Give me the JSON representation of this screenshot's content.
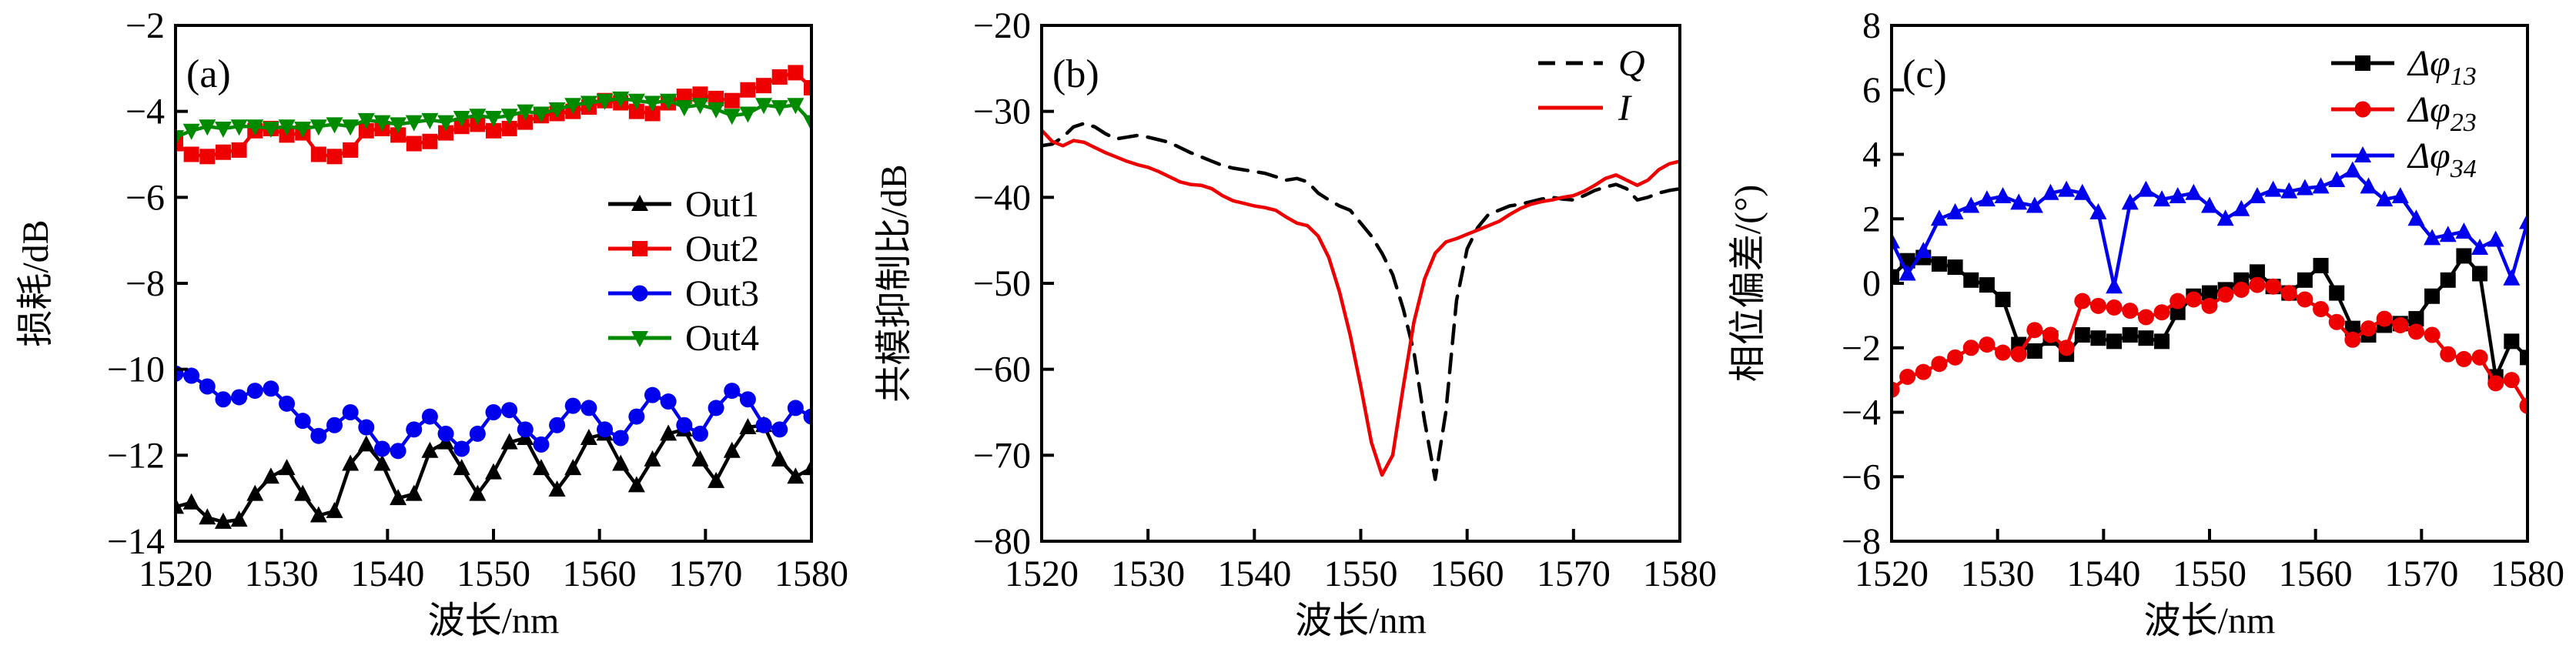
{
  "figure": {
    "background": "#ffffff",
    "colors": {
      "black": "#000000",
      "red": "#ee0000",
      "blue": "#0000ee",
      "green": "#008a00"
    }
  },
  "chart_data": [
    {
      "id": "a",
      "type": "line",
      "panel_label": "(a)",
      "xlabel": "波长/nm",
      "ylabel": "损耗/dB",
      "xlim": [
        1520,
        1580
      ],
      "ylim": [
        -14,
        -2
      ],
      "xticks": [
        1520,
        1530,
        1540,
        1550,
        1560,
        1570,
        1580
      ],
      "yticks": [
        -2,
        -4,
        -6,
        -8,
        -10,
        -12,
        -14
      ],
      "grid": false,
      "legend_position": "inside-middle-right",
      "x": [
        1520,
        1521.5,
        1523,
        1524.5,
        1526,
        1527.5,
        1529,
        1530.5,
        1532,
        1533.5,
        1535,
        1536.5,
        1538,
        1539.5,
        1541,
        1542.5,
        1544,
        1545.5,
        1547,
        1548.5,
        1550,
        1551.5,
        1553,
        1554.5,
        1556,
        1557.5,
        1559,
        1560.5,
        1562,
        1563.5,
        1565,
        1566.5,
        1568,
        1569.5,
        1571,
        1572.5,
        1574,
        1575.5,
        1577,
        1578.5,
        1580
      ],
      "series": [
        {
          "name": "Out1",
          "color": "#000000",
          "marker": "triangle-up",
          "line_style": "solid",
          "legend": {
            "text": "Out1"
          },
          "y": [
            -13.2,
            -13.1,
            -13.45,
            -13.55,
            -13.5,
            -12.9,
            -12.5,
            -12.3,
            -12.9,
            -13.4,
            -13.3,
            -12.2,
            -11.75,
            -12.2,
            -13.0,
            -12.9,
            -11.9,
            -11.7,
            -12.3,
            -12.9,
            -12.4,
            -11.7,
            -11.6,
            -12.3,
            -12.8,
            -12.3,
            -11.6,
            -11.5,
            -12.2,
            -12.7,
            -12.1,
            -11.5,
            -11.4,
            -12.1,
            -12.6,
            -11.9,
            -11.35,
            -11.3,
            -12.1,
            -12.5,
            -12.3
          ]
        },
        {
          "name": "Out2",
          "color": "#ee0000",
          "marker": "square",
          "line_style": "solid",
          "legend": {
            "text": "Out2"
          },
          "y": [
            -4.75,
            -5.0,
            -5.05,
            -4.95,
            -4.9,
            -4.45,
            -4.4,
            -4.55,
            -4.5,
            -5.0,
            -5.05,
            -4.9,
            -4.45,
            -4.4,
            -4.55,
            -4.75,
            -4.7,
            -4.5,
            -4.35,
            -4.3,
            -4.45,
            -4.4,
            -4.25,
            -4.1,
            -4.05,
            -4.0,
            -3.9,
            -3.75,
            -3.8,
            -4.0,
            -4.05,
            -3.8,
            -3.65,
            -3.6,
            -3.7,
            -3.75,
            -3.5,
            -3.4,
            -3.2,
            -3.1,
            -3.45
          ]
        },
        {
          "name": "Out3",
          "color": "#0000ee",
          "marker": "circle",
          "line_style": "solid",
          "legend": {
            "text": "Out3"
          },
          "y": [
            -10.1,
            -10.15,
            -10.4,
            -10.7,
            -10.65,
            -10.5,
            -10.45,
            -10.8,
            -11.2,
            -11.55,
            -11.3,
            -11.0,
            -11.35,
            -11.85,
            -11.9,
            -11.4,
            -11.1,
            -11.5,
            -11.85,
            -11.5,
            -11.0,
            -10.95,
            -11.4,
            -11.75,
            -11.3,
            -10.85,
            -10.9,
            -11.4,
            -11.6,
            -11.1,
            -10.6,
            -10.75,
            -11.3,
            -11.5,
            -10.9,
            -10.5,
            -10.7,
            -11.3,
            -11.4,
            -10.9,
            -11.1
          ]
        },
        {
          "name": "Out4",
          "color": "#008a00",
          "marker": "triangle-down",
          "line_style": "solid",
          "legend": {
            "text": "Out4"
          },
          "y": [
            -4.6,
            -4.45,
            -4.35,
            -4.4,
            -4.35,
            -4.35,
            -4.4,
            -4.35,
            -4.4,
            -4.35,
            -4.3,
            -4.35,
            -4.2,
            -4.25,
            -4.3,
            -4.25,
            -4.2,
            -4.25,
            -4.15,
            -4.1,
            -4.15,
            -4.1,
            -4.0,
            -4.05,
            -3.95,
            -3.85,
            -3.8,
            -3.75,
            -3.7,
            -3.75,
            -3.8,
            -3.75,
            -3.9,
            -3.85,
            -3.95,
            -4.1,
            -4.05,
            -3.85,
            -3.9,
            -3.85,
            -4.25
          ]
        }
      ]
    },
    {
      "id": "b",
      "type": "line",
      "panel_label": "(b)",
      "xlabel": "波长/nm",
      "ylabel": "共模抑制比/dB",
      "xlim": [
        1520,
        1580
      ],
      "ylim": [
        -80,
        -20
      ],
      "xticks": [
        1520,
        1530,
        1540,
        1550,
        1560,
        1570,
        1580
      ],
      "yticks": [
        -20,
        -30,
        -40,
        -50,
        -60,
        -70,
        -80
      ],
      "grid": false,
      "legend_position": "inside-top-right",
      "x": [
        1520,
        1521,
        1522,
        1523,
        1524,
        1525,
        1526,
        1527,
        1528,
        1529,
        1530,
        1531,
        1532,
        1533,
        1534,
        1535,
        1536,
        1537,
        1538,
        1539,
        1540,
        1541,
        1542,
        1543,
        1544,
        1545,
        1546,
        1547,
        1548,
        1549,
        1550,
        1551,
        1552,
        1553,
        1554,
        1555,
        1556,
        1557,
        1558,
        1559,
        1560,
        1561,
        1562,
        1563,
        1564,
        1565,
        1566,
        1567,
        1568,
        1569,
        1570,
        1571,
        1572,
        1573,
        1574,
        1575,
        1576,
        1577,
        1578,
        1579,
        1580
      ],
      "series": [
        {
          "name": "Q",
          "color": "#000000",
          "marker": null,
          "line_style": "dashed",
          "legend": {
            "text": "Q",
            "italic": true
          },
          "y": [
            -34.0,
            -33.8,
            -33.0,
            -31.8,
            -31.4,
            -31.8,
            -32.6,
            -33.2,
            -33.0,
            -32.8,
            -33.0,
            -33.3,
            -33.6,
            -34.2,
            -34.8,
            -35.3,
            -35.8,
            -36.3,
            -36.6,
            -36.8,
            -37.0,
            -37.2,
            -37.6,
            -38.0,
            -37.8,
            -38.2,
            -39.5,
            -40.3,
            -41.0,
            -41.5,
            -43.0,
            -44.5,
            -46.5,
            -49.0,
            -53.0,
            -58.0,
            -66.0,
            -72.8,
            -65.0,
            -52.0,
            -46.0,
            -43.5,
            -42.0,
            -41.5,
            -41.0,
            -40.8,
            -40.5,
            -40.2,
            -40.0,
            -40.2,
            -40.3,
            -39.8,
            -39.2,
            -38.8,
            -38.5,
            -39.0,
            -40.3,
            -40.0,
            -39.5,
            -39.2,
            -39.0
          ]
        },
        {
          "name": "I",
          "color": "#ee0000",
          "marker": null,
          "line_style": "solid",
          "legend": {
            "text": "I",
            "italic": true
          },
          "y": [
            -32.2,
            -33.5,
            -34.0,
            -33.4,
            -33.6,
            -34.2,
            -34.8,
            -35.3,
            -35.8,
            -36.2,
            -36.5,
            -37.0,
            -37.6,
            -38.2,
            -38.5,
            -38.6,
            -39.0,
            -39.8,
            -40.4,
            -40.7,
            -41.0,
            -41.2,
            -41.5,
            -42.3,
            -43.0,
            -43.3,
            -44.5,
            -47.0,
            -51.0,
            -56.0,
            -62.0,
            -68.5,
            -72.3,
            -70.0,
            -62.0,
            -54.5,
            -49.5,
            -46.5,
            -45.2,
            -44.8,
            -44.3,
            -43.8,
            -43.3,
            -42.8,
            -42.0,
            -41.3,
            -40.8,
            -40.5,
            -40.3,
            -40.0,
            -39.8,
            -39.3,
            -38.6,
            -37.8,
            -37.4,
            -38.0,
            -38.6,
            -38.0,
            -36.8,
            -36.1,
            -35.8
          ]
        }
      ]
    },
    {
      "id": "c",
      "type": "line",
      "panel_label": "(c)",
      "xlabel": "波长/nm",
      "ylabel": "相位偏差/(°)",
      "xlim": [
        1520,
        1580
      ],
      "ylim": [
        -8,
        8
      ],
      "xticks": [
        1520,
        1530,
        1540,
        1550,
        1560,
        1570,
        1580
      ],
      "yticks": [
        8,
        6,
        4,
        2,
        0,
        -2,
        -4,
        -6,
        -8
      ],
      "grid": false,
      "legend_position": "inside-top-right",
      "x": [
        1520,
        1521.5,
        1523,
        1524.5,
        1526,
        1527.5,
        1529,
        1530.5,
        1532,
        1533.5,
        1535,
        1536.5,
        1538,
        1539.5,
        1541,
        1542.5,
        1544,
        1545.5,
        1547,
        1548.5,
        1550,
        1551.5,
        1553,
        1554.5,
        1556,
        1557.5,
        1559,
        1560.5,
        1562,
        1563.5,
        1565,
        1566.5,
        1568,
        1569.5,
        1571,
        1572.5,
        1574,
        1575.5,
        1577,
        1578.5,
        1580
      ],
      "series": [
        {
          "name": "dphi13",
          "color": "#000000",
          "marker": "square",
          "line_style": "solid",
          "legend": {
            "text": "Δφ",
            "sub": "13",
            "italic": true
          },
          "y": [
            0.2,
            0.7,
            0.8,
            0.6,
            0.5,
            0.1,
            -0.05,
            -0.5,
            -1.9,
            -2.1,
            -1.7,
            -2.2,
            -1.6,
            -1.7,
            -1.8,
            -1.6,
            -1.7,
            -1.8,
            -0.9,
            -0.4,
            -0.3,
            -0.2,
            0.1,
            0.35,
            -0.1,
            -0.3,
            0.1,
            0.55,
            -0.3,
            -1.4,
            -1.6,
            -1.3,
            -1.25,
            -1.1,
            -0.4,
            0.1,
            0.85,
            0.3,
            -2.9,
            -1.8,
            -2.3
          ]
        },
        {
          "name": "dphi23",
          "color": "#ee0000",
          "marker": "circle",
          "line_style": "solid",
          "legend": {
            "text": "Δφ",
            "sub": "23",
            "italic": true
          },
          "y": [
            -3.3,
            -2.9,
            -2.75,
            -2.5,
            -2.3,
            -2.0,
            -1.9,
            -2.15,
            -2.2,
            -1.45,
            -1.6,
            -2.0,
            -0.55,
            -0.7,
            -0.75,
            -0.85,
            -1.05,
            -0.9,
            -0.55,
            -0.5,
            -0.7,
            -0.35,
            -0.2,
            -0.05,
            -0.1,
            -0.3,
            -0.5,
            -0.8,
            -1.2,
            -1.75,
            -1.4,
            -1.1,
            -1.3,
            -1.5,
            -1.6,
            -2.2,
            -2.35,
            -2.3,
            -3.1,
            -3.0,
            -3.8
          ]
        },
        {
          "name": "dphi34",
          "color": "#0000ee",
          "marker": "triangle-up",
          "line_style": "solid",
          "legend": {
            "text": "Δφ",
            "sub": "34",
            "italic": true
          },
          "y": [
            1.3,
            0.3,
            1.0,
            2.0,
            2.2,
            2.4,
            2.6,
            2.7,
            2.5,
            2.4,
            2.8,
            2.9,
            2.8,
            2.2,
            -0.1,
            2.5,
            2.9,
            2.6,
            2.7,
            2.8,
            2.4,
            2.0,
            2.3,
            2.7,
            2.9,
            2.85,
            2.95,
            3.0,
            3.2,
            3.5,
            3.0,
            2.6,
            2.7,
            2.0,
            1.4,
            1.5,
            1.6,
            1.1,
            1.35,
            0.15,
            1.9
          ]
        }
      ]
    }
  ]
}
